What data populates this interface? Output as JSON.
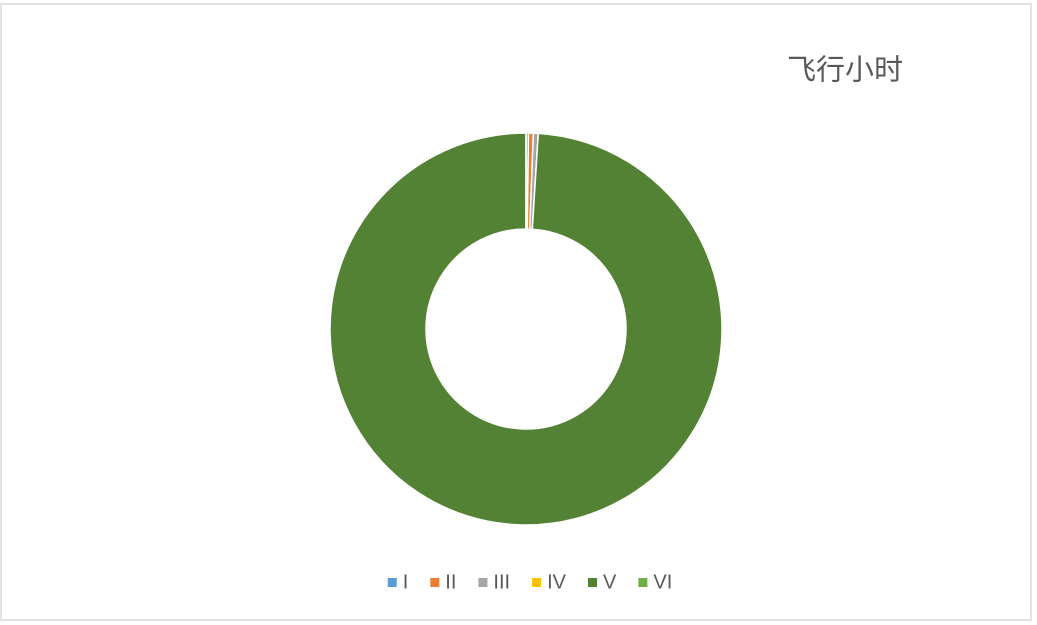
{
  "chart_data": {
    "type": "doughnut",
    "title": "飞行小时",
    "categories": [
      "I",
      "II",
      "III",
      "IV",
      "V",
      "VI"
    ],
    "values": [
      0.2,
      0.4,
      0.4,
      0,
      99,
      0
    ],
    "colors": [
      "#5b9bd5",
      "#ed7d31",
      "#a5a5a5",
      "#ffc000",
      "#548235",
      "#70ad47"
    ],
    "legend": "bottom"
  }
}
